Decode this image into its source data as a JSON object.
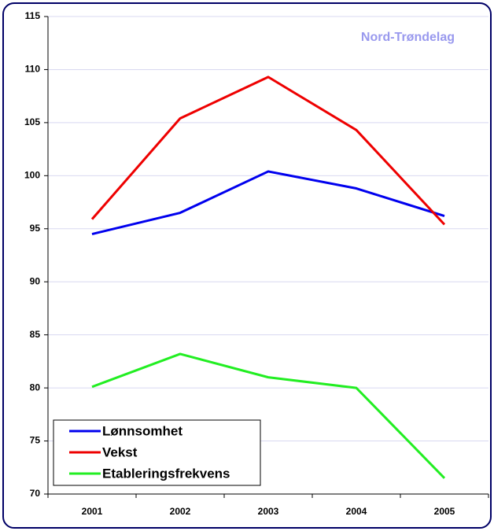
{
  "chart_data": {
    "type": "line",
    "annotation": "Nord-Trøndelag",
    "categories": [
      "2001",
      "2002",
      "2003",
      "2004",
      "2005"
    ],
    "series": [
      {
        "name": "Lønnsomhet",
        "color": "#0000ee",
        "values": [
          94.5,
          96.5,
          100.4,
          98.8,
          96.2
        ]
      },
      {
        "name": "Vekst",
        "color": "#ee0000",
        "values": [
          95.9,
          105.4,
          109.3,
          104.3,
          95.4
        ]
      },
      {
        "name": "Etableringsfrekvens",
        "color": "#22ee22",
        "values": [
          80.1,
          83.2,
          81.0,
          80.0,
          71.5
        ]
      }
    ],
    "ylim": [
      70,
      115
    ],
    "yticks": [
      70,
      75,
      80,
      85,
      90,
      95,
      100,
      105,
      110,
      115
    ],
    "grid": true,
    "legend": "lower left"
  }
}
